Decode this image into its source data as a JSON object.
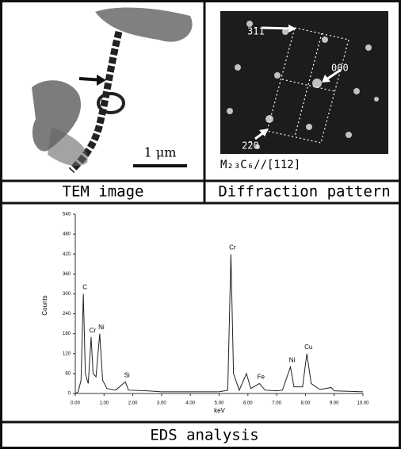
{
  "panels": {
    "tem": {
      "scale_label": "1 μm",
      "caption": "TEM image"
    },
    "diffraction": {
      "spot_labels": [
        "3̄11",
        "000",
        "2̄20"
      ],
      "zone_axis": "M₂₃C₆//[112]",
      "caption": "Diffraction pattern"
    }
  },
  "chart_data": {
    "type": "line",
    "xlabel": "keV",
    "ylabel": "Counts",
    "caption": "EDS analysis",
    "color": "#222222",
    "x": [
      0,
      0.1,
      0.2,
      0.28,
      0.35,
      0.45,
      0.55,
      0.62,
      0.72,
      0.85,
      0.95,
      1.1,
      1.4,
      1.74,
      1.85,
      2.5,
      3,
      4,
      5,
      5.3,
      5.41,
      5.5,
      5.7,
      5.95,
      6.1,
      6.4,
      6.6,
      7,
      7.2,
      7.48,
      7.6,
      7.9,
      8.05,
      8.2,
      8.5,
      8.9,
      9,
      10
    ],
    "values": [
      0,
      5,
      40,
      300,
      60,
      30,
      170,
      60,
      50,
      180,
      40,
      15,
      10,
      35,
      10,
      8,
      5,
      5,
      5,
      10,
      420,
      60,
      10,
      60,
      15,
      30,
      10,
      8,
      10,
      80,
      20,
      20,
      120,
      30,
      12,
      18,
      8,
      5
    ],
    "peaks": [
      {
        "label": "C",
        "x": 0.28,
        "y": 300
      },
      {
        "label": "Cr",
        "x": 0.55,
        "y": 170
      },
      {
        "label": "Ni",
        "x": 0.85,
        "y": 180
      },
      {
        "label": "Si",
        "x": 1.74,
        "y": 35
      },
      {
        "label": "Cr",
        "x": 5.41,
        "y": 420
      },
      {
        "label": "Fe",
        "x": 6.4,
        "y": 30
      },
      {
        "label": "Ni",
        "x": 7.48,
        "y": 80
      },
      {
        "label": "Cu",
        "x": 8.05,
        "y": 120
      }
    ],
    "xlim": [
      0,
      10
    ],
    "ylim": [
      0,
      540
    ],
    "xticks": [
      {
        "value": 0,
        "label": "0.00"
      },
      {
        "value": 1,
        "label": "1.00"
      },
      {
        "value": 2,
        "label": "2.00"
      },
      {
        "value": 3,
        "label": "3.00"
      },
      {
        "value": 4,
        "label": "4.00"
      },
      {
        "value": 5,
        "label": "5.00"
      },
      {
        "value": 6,
        "label": "6.00"
      },
      {
        "value": 7,
        "label": "7.00"
      },
      {
        "value": 8,
        "label": "8.00"
      },
      {
        "value": 9,
        "label": "9.00"
      },
      {
        "value": 10,
        "label": "10.00"
      }
    ],
    "yticks": [
      0,
      60,
      120,
      180,
      240,
      300,
      360,
      420,
      480,
      540
    ]
  }
}
